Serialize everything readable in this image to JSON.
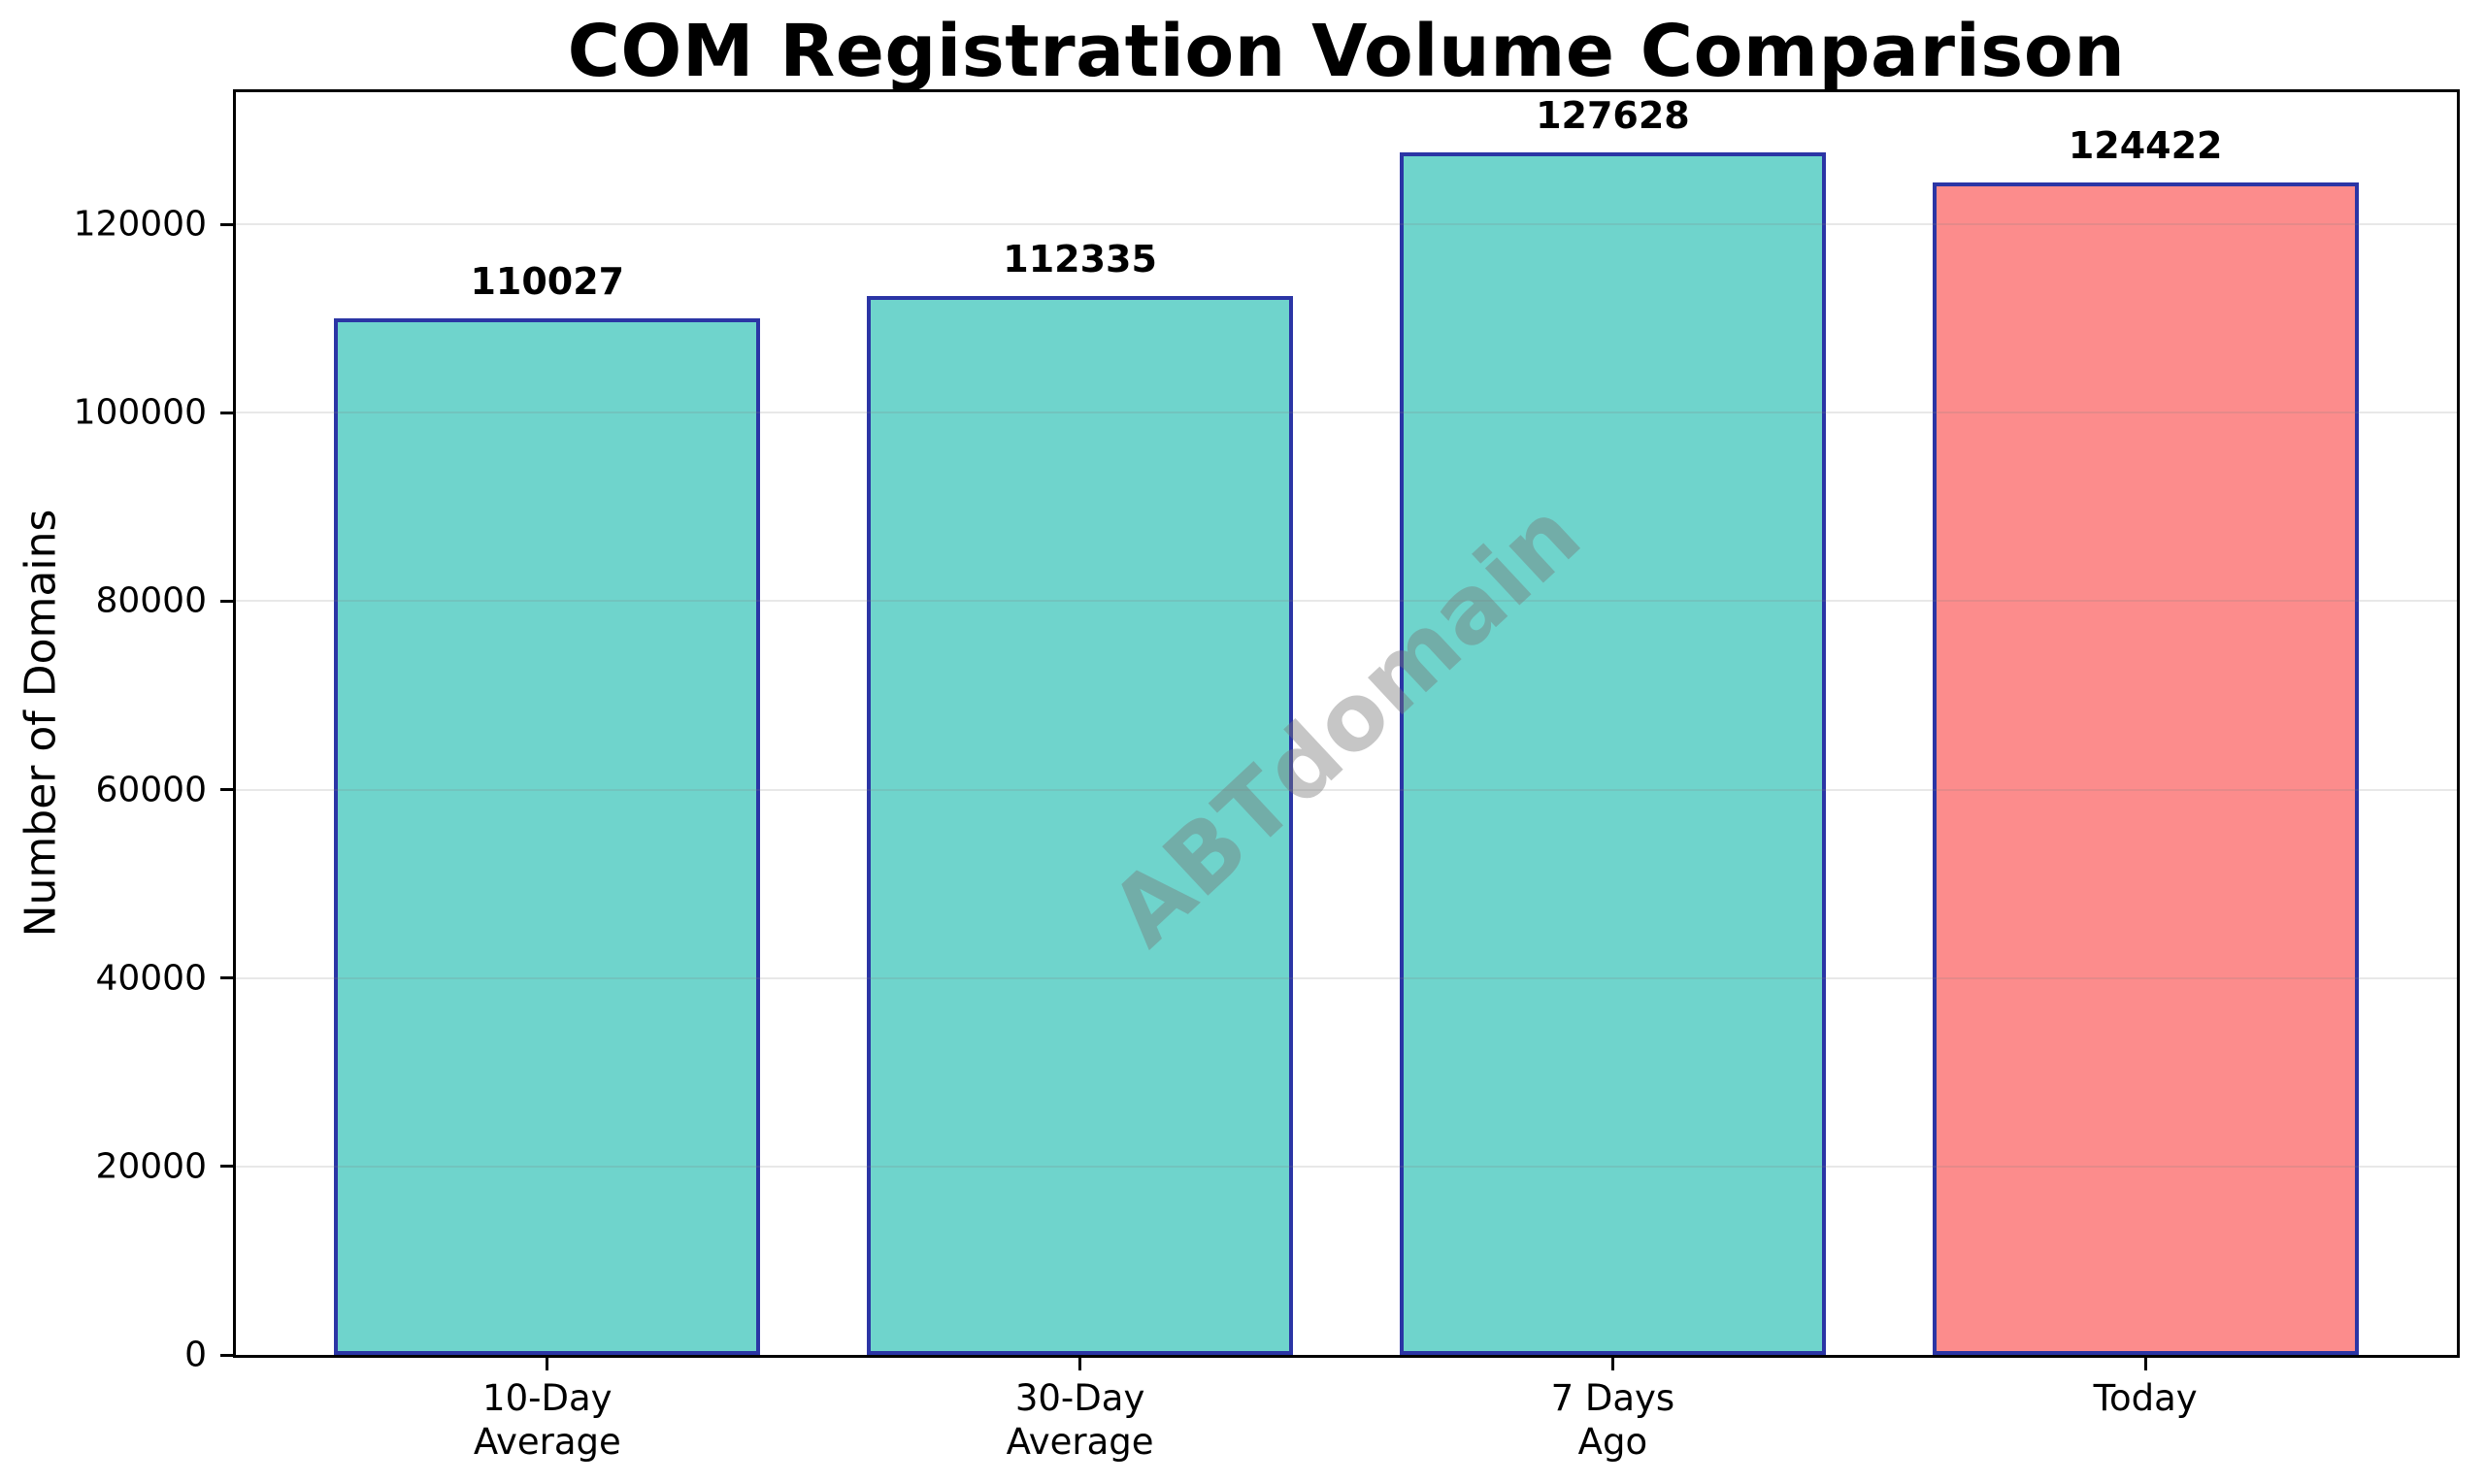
{
  "chart_data": {
    "type": "bar",
    "title": "COM Registration Volume Comparison",
    "xlabel": "",
    "ylabel": "Number of Domains",
    "categories": [
      "10-Day\nAverage",
      "30-Day\nAverage",
      "7 Days\nAgo",
      "Today"
    ],
    "values": [
      110027,
      112335,
      127628,
      124422
    ],
    "bar_labels": [
      "110027",
      "112335",
      "127628",
      "124422"
    ],
    "bar_colors": [
      "#6FD4CC",
      "#6FD4CC",
      "#6FD4CC",
      "#FC8C8C"
    ],
    "bar_edge_color": "#2B35A5",
    "yticks": [
      0,
      20000,
      40000,
      60000,
      80000,
      100000,
      120000
    ],
    "ytick_labels": [
      "0",
      "20000",
      "40000",
      "60000",
      "80000",
      "100000",
      "120000"
    ],
    "ylim": [
      0,
      134009
    ],
    "grid": "horizontal",
    "gridline_color": "#E8E8E8",
    "legend_position": "none",
    "watermark": "ABTdomain",
    "colors": {
      "teal_bar": "#6FD4CC",
      "highlight_bar_salmon": "#FC8C8C",
      "bar_edge_navy": "#2B35A5",
      "axis_black": "#000000"
    }
  }
}
